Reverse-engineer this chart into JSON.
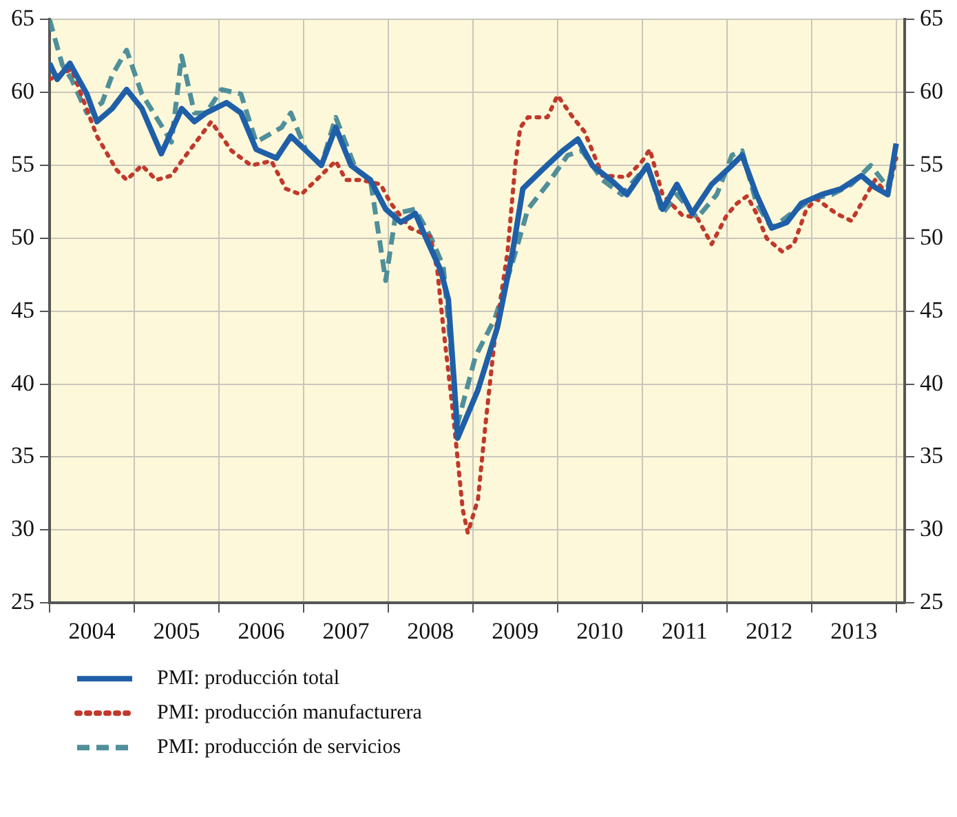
{
  "chart_data": {
    "type": "line",
    "xlim": [
      2004,
      2014.1
    ],
    "xticks": [
      {
        "value": 2004,
        "label": null
      },
      {
        "value": 2004.5,
        "label": "2004"
      },
      {
        "value": 2005,
        "label": null
      },
      {
        "value": 2005.5,
        "label": "2005"
      },
      {
        "value": 2006,
        "label": null
      },
      {
        "value": 2006.5,
        "label": "2006"
      },
      {
        "value": 2007,
        "label": null
      },
      {
        "value": 2007.5,
        "label": "2007"
      },
      {
        "value": 2008,
        "label": null
      },
      {
        "value": 2008.5,
        "label": "2008"
      },
      {
        "value": 2009,
        "label": null
      },
      {
        "value": 2009.5,
        "label": "2009"
      },
      {
        "value": 2010,
        "label": null
      },
      {
        "value": 2010.5,
        "label": "2010"
      },
      {
        "value": 2011,
        "label": null
      },
      {
        "value": 2011.5,
        "label": "2011"
      },
      {
        "value": 2012,
        "label": null
      },
      {
        "value": 2012.5,
        "label": "2012"
      },
      {
        "value": 2013,
        "label": null
      },
      {
        "value": 2013.5,
        "label": "2013"
      },
      {
        "value": 2014,
        "label": null
      }
    ],
    "ylim": [
      25,
      65
    ],
    "yticks": [
      25,
      30,
      35,
      40,
      45,
      50,
      55,
      60,
      65
    ],
    "y2lim": [
      25,
      65
    ],
    "y2ticks": [
      25,
      30,
      35,
      40,
      45,
      50,
      55,
      60,
      65
    ],
    "grid": true,
    "legend": "bottom",
    "marker": "none",
    "series": [
      {
        "name": "PMI: producción total",
        "color": "#1f5fa8",
        "line_style": "solid",
        "x": [
          2004.0,
          2004.09,
          2004.24,
          2004.44,
          2004.56,
          2004.74,
          2004.91,
          2005.09,
          2005.32,
          2005.56,
          2005.71,
          2005.85,
          2006.09,
          2006.26,
          2006.44,
          2006.68,
          2006.85,
          2007.03,
          2007.21,
          2007.38,
          2007.56,
          2007.79,
          2007.97,
          2008.15,
          2008.32,
          2008.44,
          2008.62,
          2008.71,
          2008.78,
          2008.82,
          2009.06,
          2009.29,
          2009.47,
          2009.59,
          2009.82,
          2010.06,
          2010.24,
          2010.41,
          2010.65,
          2010.82,
          2011.06,
          2011.24,
          2011.41,
          2011.59,
          2011.82,
          2012.06,
          2012.18,
          2012.35,
          2012.53,
          2012.71,
          2012.88,
          2013.12,
          2013.35,
          2013.59,
          2013.75,
          2013.9,
          2014.0
        ],
        "values": [
          62,
          60.9,
          62,
          59.9,
          58,
          58.9,
          60.2,
          58.9,
          55.8,
          58.9,
          58,
          58.6,
          59.3,
          58.6,
          56.1,
          55.5,
          57,
          56,
          55,
          57.6,
          55,
          54,
          52,
          51.1,
          51.7,
          50.1,
          47.8,
          45.8,
          40,
          36.3,
          39.6,
          43.9,
          49.1,
          53.4,
          54.7,
          56,
          56.8,
          55,
          53.9,
          53,
          55,
          52,
          53.7,
          51.7,
          53.7,
          55,
          55.7,
          53,
          50.7,
          51.1,
          52.4,
          53,
          53.4,
          54.3,
          53.5,
          53,
          56.5
        ]
      },
      {
        "name": "PMI: producción manufacturera",
        "color": "#c0392b",
        "line_style": "dotted",
        "x": [
          2004.0,
          2004.26,
          2004.56,
          2004.79,
          2004.91,
          2005.09,
          2005.26,
          2005.44,
          2005.56,
          2005.91,
          2006.15,
          2006.38,
          2006.62,
          2006.79,
          2006.97,
          2007.15,
          2007.38,
          2007.5,
          2007.68,
          2007.91,
          2008.03,
          2008.26,
          2008.5,
          2008.58,
          2008.65,
          2008.76,
          2008.88,
          2008.94,
          2009.06,
          2009.15,
          2009.26,
          2009.41,
          2009.5,
          2009.56,
          2009.65,
          2009.88,
          2010.0,
          2010.18,
          2010.32,
          2010.53,
          2010.82,
          2011.0,
          2011.09,
          2011.24,
          2011.47,
          2011.65,
          2011.82,
          2012.0,
          2012.12,
          2012.24,
          2012.35,
          2012.47,
          2012.65,
          2012.79,
          2012.94,
          2013.06,
          2013.29,
          2013.47,
          2013.6,
          2013.75,
          2013.9,
          2014.0
        ],
        "values": [
          60.9,
          61.6,
          57,
          54.7,
          54,
          55,
          54,
          54.3,
          55.3,
          58,
          56,
          55,
          55.3,
          53.4,
          53,
          54,
          55.3,
          54,
          54,
          53.7,
          52.4,
          50.7,
          50.1,
          47.8,
          43.9,
          38.3,
          31.4,
          29.8,
          32.1,
          37.3,
          43.2,
          49.1,
          55,
          57.6,
          58.3,
          58.3,
          59.8,
          58.3,
          57.3,
          54.3,
          54.2,
          55.3,
          56.1,
          53,
          51.6,
          51.4,
          49.6,
          51.6,
          52.4,
          52.9,
          51.7,
          50,
          49.1,
          49.6,
          52,
          52.7,
          51.7,
          51.2,
          52.5,
          54,
          53,
          55.5
        ]
      },
      {
        "name": "PMI: producción de servicios",
        "color": "#4f8f9a",
        "line_style": "dashed",
        "x": [
          2004.0,
          2004.15,
          2004.26,
          2004.44,
          2004.62,
          2004.74,
          2004.91,
          2005.09,
          2005.26,
          2005.44,
          2005.56,
          2005.71,
          2005.85,
          2006.03,
          2006.26,
          2006.44,
          2006.74,
          2006.85,
          2007.03,
          2007.21,
          2007.38,
          2007.62,
          2007.79,
          2007.97,
          2008.09,
          2008.32,
          2008.5,
          2008.65,
          2008.82,
          2009.03,
          2009.26,
          2009.47,
          2009.65,
          2009.88,
          2010.12,
          2010.29,
          2010.53,
          2010.76,
          2011.06,
          2011.24,
          2011.41,
          2011.65,
          2011.88,
          2012.06,
          2012.18,
          2012.35,
          2012.53,
          2012.76,
          2013.0,
          2013.24,
          2013.47,
          2013.7,
          2013.9,
          2014.0
        ],
        "values": [
          65,
          61.9,
          60.9,
          58.6,
          59.3,
          61.2,
          62.9,
          59.9,
          58.3,
          56.6,
          62.5,
          58.6,
          58.6,
          60.2,
          59.9,
          56.6,
          57.6,
          58.6,
          56,
          55,
          58.3,
          54.7,
          54,
          47.1,
          51.7,
          52,
          50.1,
          48.1,
          37.3,
          41.9,
          44.5,
          48.4,
          52,
          53.7,
          55.7,
          56,
          54,
          53,
          55,
          51.7,
          53,
          51.4,
          53,
          55.7,
          56,
          52.4,
          50.7,
          51.7,
          52.7,
          53,
          53.7,
          55,
          53.5,
          56
        ]
      }
    ]
  }
}
